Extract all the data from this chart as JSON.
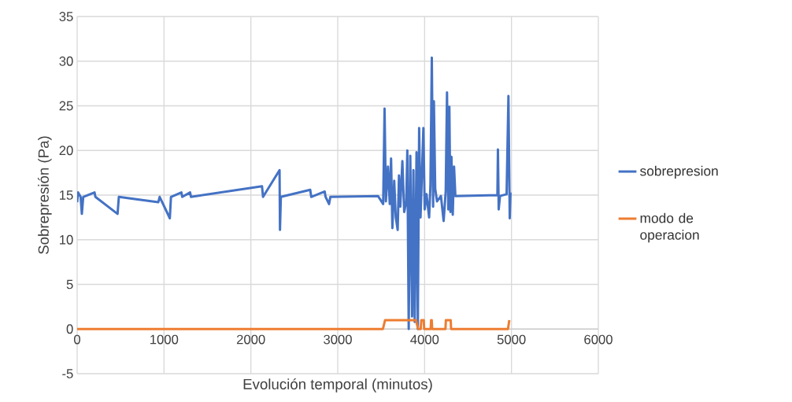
{
  "chart_data": {
    "type": "line",
    "xlabel": "Evolución temporal (minutos)",
    "ylabel": "Sobrepresión (Pa)",
    "xlim": [
      0,
      6000
    ],
    "ylim": [
      -5,
      35
    ],
    "xticks": [
      0,
      1000,
      2000,
      3000,
      4000,
      5000,
      6000
    ],
    "yticks": [
      -5,
      0,
      5,
      10,
      15,
      20,
      25,
      30,
      35
    ],
    "grid": true,
    "legend": "right",
    "series": [
      {
        "name": "sobrepresion",
        "color": "#4472c4",
        "x": [
          0,
          10,
          40,
          54,
          70,
          200,
          210,
          465,
          480,
          934,
          950,
          1067,
          1080,
          1200,
          1210,
          1300,
          1310,
          2128,
          2140,
          2330,
          2335,
          2345,
          2683,
          2695,
          2850,
          2860,
          2900,
          2915,
          3463,
          3523,
          3539,
          3554,
          3578,
          3599,
          3614,
          3629,
          3650,
          3668,
          3690,
          3705,
          3720,
          3744,
          3765,
          3789,
          3801,
          3817,
          3835,
          3856,
          3871,
          3886,
          3907,
          3922,
          3937,
          3953,
          3986,
          4001,
          4022,
          4052,
          4067,
          4083,
          4098,
          4107,
          4122,
          4143,
          4188,
          4219,
          4243,
          4258,
          4273,
          4285,
          4297,
          4309,
          4324,
          4339,
          4354,
          4838,
          4844,
          4853,
          4868,
          4944,
          4965,
          4980,
          4989
        ],
        "values": [
          14.2,
          15.3,
          14.8,
          12.9,
          14.8,
          15.3,
          14.8,
          12.9,
          14.8,
          14.2,
          14.8,
          12.4,
          14.8,
          15.3,
          14.8,
          15.3,
          14.8,
          16.0,
          14.8,
          17.8,
          11.1,
          14.8,
          15.6,
          14.8,
          15.4,
          14.8,
          14.0,
          14.8,
          14.9,
          14.0,
          24.7,
          14.3,
          18.2,
          14.0,
          19.1,
          11.3,
          16.6,
          12.5,
          11.1,
          17.2,
          13.7,
          18.8,
          13.1,
          14.3,
          20.0,
          0,
          19.4,
          1.4,
          17.8,
          0.8,
          19.8,
          0,
          22.5,
          12.5,
          22.5,
          13.4,
          15.1,
          12.5,
          16.0,
          30.4,
          13.7,
          25.5,
          15.7,
          14.3,
          14.9,
          12.1,
          15.4,
          26.5,
          13.4,
          24.9,
          13.1,
          19.3,
          12.8,
          18.2,
          14.9,
          15.0,
          20.1,
          13.4,
          14.9,
          15.1,
          26.1,
          12.4,
          15.3
        ]
      },
      {
        "name": "modo de operacion",
        "color": "#ed7d31",
        "x": [
          0,
          3520,
          3545,
          3900,
          3925,
          3955,
          3962,
          3990,
          3995,
          4070,
          4075,
          4082,
          4087,
          4240,
          4245,
          4300,
          4305,
          4960,
          4975
        ],
        "values": [
          0,
          0,
          1,
          1,
          0,
          0,
          1,
          1,
          0,
          0,
          1,
          1,
          0,
          0,
          1,
          1,
          0,
          0,
          1
        ]
      }
    ]
  }
}
